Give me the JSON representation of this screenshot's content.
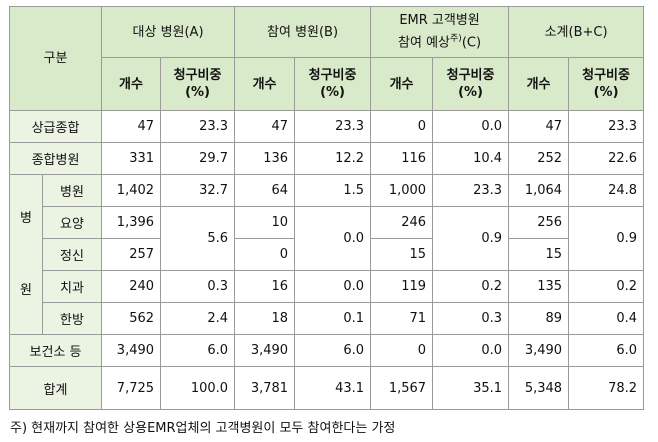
{
  "header": {
    "category": "구분",
    "groups": [
      "대상 병원(A)",
      "참여 병원(B)",
      "EMR 고객병원",
      "참여 예상",
      "주)",
      "(C)",
      "소계(B+C)"
    ],
    "count": "개수",
    "ratio_line1": "청구비중",
    "ratio_line2": "(%)"
  },
  "rows": {
    "upper": {
      "label": "상급종합",
      "a_n": "47",
      "a_r": "23.3",
      "b_n": "47",
      "b_r": "23.3",
      "c_n": "0",
      "c_r": "0.0",
      "s_n": "47",
      "s_r": "23.3"
    },
    "general": {
      "label": "종합병원",
      "a_n": "331",
      "a_r": "29.7",
      "b_n": "136",
      "b_r": "12.2",
      "c_n": "116",
      "c_r": "10.4",
      "s_n": "252",
      "s_r": "22.6"
    },
    "hosp_group_chars": [
      "병",
      "원"
    ],
    "hospital": {
      "label": "병원",
      "a_n": "1,402",
      "a_r": "32.7",
      "b_n": "64",
      "b_r": "1.5",
      "c_n": "1,000",
      "c_r": "23.3",
      "s_n": "1,064",
      "s_r": "24.8"
    },
    "nursing": {
      "label": "요양",
      "a_n": "1,396",
      "b_n": "10",
      "c_n": "246",
      "s_n": "256"
    },
    "mental": {
      "label": "정신",
      "a_n": "257",
      "b_n": "0",
      "c_n": "15",
      "s_n": "15"
    },
    "nm_ratio": {
      "a_r": "5.6",
      "b_r": "0.0",
      "c_r": "0.9",
      "s_r": "0.9"
    },
    "dental": {
      "label": "치과",
      "a_n": "240",
      "a_r": "0.3",
      "b_n": "16",
      "b_r": "0.0",
      "c_n": "119",
      "c_r": "0.2",
      "s_n": "135",
      "s_r": "0.2"
    },
    "oriental": {
      "label": "한방",
      "a_n": "562",
      "a_r": "2.4",
      "b_n": "18",
      "b_r": "0.1",
      "c_n": "71",
      "c_r": "0.3",
      "s_n": "89",
      "s_r": "0.4"
    },
    "health": {
      "label": "보건소 등",
      "a_n": "3,490",
      "a_r": "6.0",
      "b_n": "3,490",
      "b_r": "6.0",
      "c_n": "0",
      "c_r": "0.0",
      "s_n": "3,490",
      "s_r": "6.0"
    },
    "total": {
      "label": "합계",
      "a_n": "7,725",
      "a_r": "100.0",
      "b_n": "3,781",
      "b_r": "43.1",
      "c_n": "1,567",
      "c_r": "35.1",
      "s_n": "5,348",
      "s_r": "78.2"
    }
  },
  "footnote": "주) 현재까지 참여한 상용EMR업체의 고객병원이 모두 참여한다는 가정"
}
